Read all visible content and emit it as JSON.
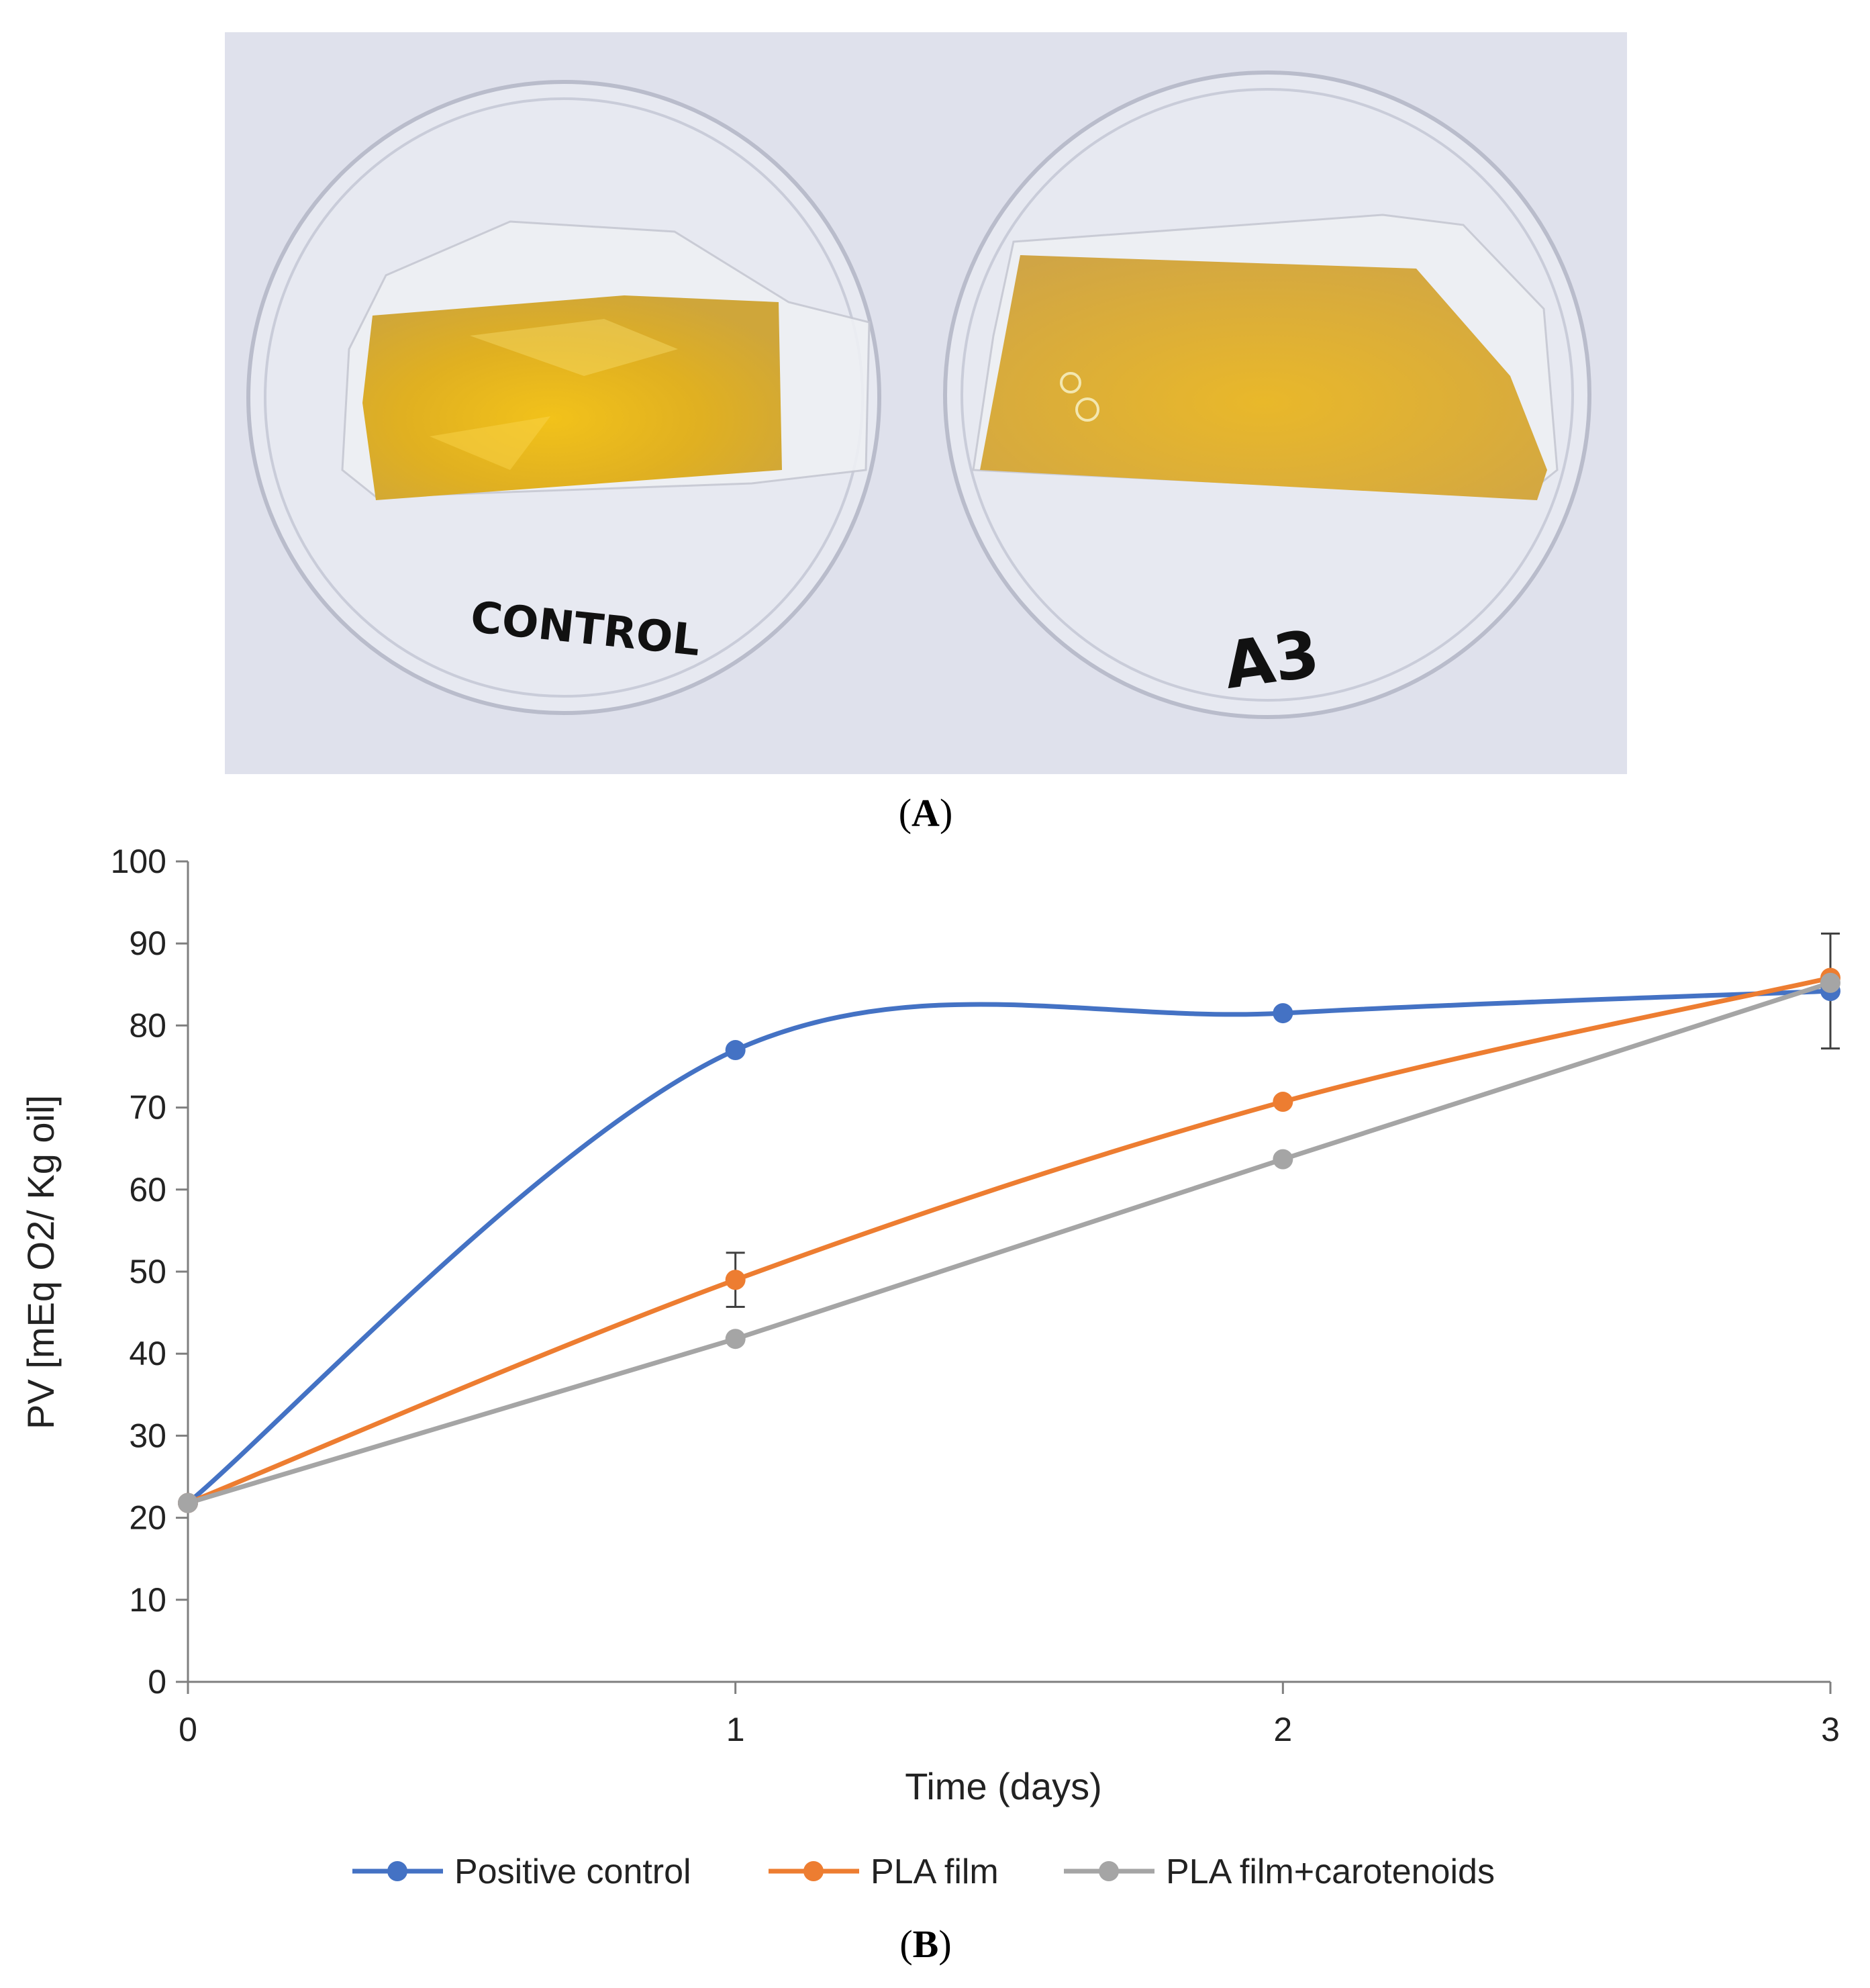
{
  "photo": {
    "panel_label": "A",
    "dish_left_label": "CONTROL",
    "dish_right_label": "A3"
  },
  "chart_panel_label": "B",
  "colors": {
    "positive_control": "#4472C4",
    "pla_film": "#ED7D31",
    "pla_carotenoids": "#A5A5A5",
    "axis": "#7f7f7f",
    "errorbar": "#404040"
  },
  "chart_data": {
    "type": "line",
    "title": "",
    "xlabel": "Time (days)",
    "ylabel": "PV [mEq O2/ Kg oil]",
    "x": [
      0,
      1,
      2,
      3
    ],
    "xlim": [
      0,
      3
    ],
    "ylim": [
      0,
      100
    ],
    "xticks": [
      "0",
      "1",
      "2",
      "3"
    ],
    "yticks": [
      "0",
      "10",
      "20",
      "30",
      "40",
      "50",
      "60",
      "70",
      "80",
      "90",
      "100"
    ],
    "grid": false,
    "legend_position": "bottom",
    "series": [
      {
        "name": "Positive control",
        "color_key": "positive_control",
        "smooth": true,
        "values": [
          21.8,
          77.0,
          81.5,
          84.2
        ],
        "error_bars": [
          null,
          null,
          null,
          7.0
        ]
      },
      {
        "name": "PLA film",
        "color_key": "pla_film",
        "smooth": true,
        "values": [
          21.8,
          49.0,
          70.7,
          85.8
        ],
        "error_bars": [
          null,
          3.3,
          null,
          null
        ]
      },
      {
        "name": "PLA film+carotenoids",
        "color_key": "pla_carotenoids",
        "smooth": false,
        "values": [
          21.8,
          41.8,
          63.7,
          85.2
        ],
        "error_bars": [
          null,
          null,
          null,
          null
        ]
      }
    ]
  }
}
